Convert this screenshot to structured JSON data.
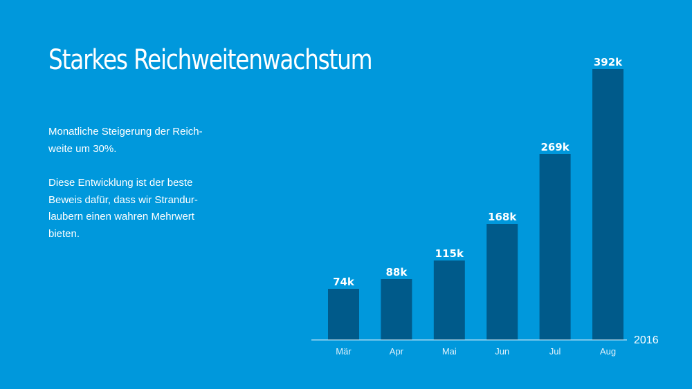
{
  "slide": {
    "title": "Starkes Reichweitenwachstum",
    "paragraph_1": "Monatliche Steigerung der Reich-weite um 30%.",
    "paragraph_2": "Diese Entwicklung ist der beste Beweis dafür, dass wir Strandur-laubern einen wahren Mehrwert bieten."
  },
  "colors": {
    "background": "#0098dc",
    "bar": "#005a8a",
    "text": "#ffffff",
    "axis": "#e6f5fc"
  },
  "chart_data": {
    "type": "bar",
    "categories": [
      "Mär",
      "Apr",
      "Mai",
      "Jun",
      "Jul",
      "Aug"
    ],
    "values": [
      74,
      88,
      115,
      168,
      269,
      392
    ],
    "data_labels": [
      "74k",
      "88k",
      "115k",
      "168k",
      "269k",
      "392k"
    ],
    "year_label": "2016",
    "title": "",
    "xlabel": "",
    "ylabel": "",
    "ylim": [
      0,
      392
    ],
    "grid": false,
    "legend": "none"
  }
}
